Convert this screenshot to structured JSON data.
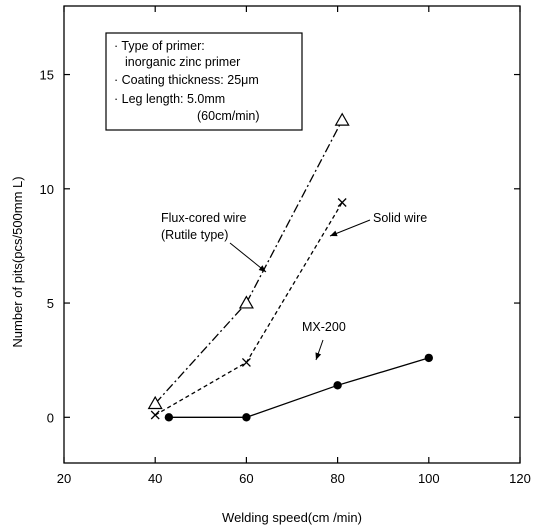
{
  "chart_data": {
    "type": "line",
    "xlabel": "Welding speed(cm /min)",
    "ylabel": "Number of pits(pcs/500mm L)",
    "xlim": [
      20,
      120
    ],
    "ylim": [
      -2,
      18
    ],
    "xticks": [
      20,
      40,
      60,
      80,
      100,
      120
    ],
    "yticks": [
      0,
      5,
      10,
      15
    ],
    "grid": false,
    "series": [
      {
        "name": "Flux-cored wire (Rutile type)",
        "marker": "triangle-open",
        "linestyle": "dash-dot",
        "x": [
          40,
          60,
          81
        ],
        "y": [
          0.6,
          5.0,
          13.0
        ]
      },
      {
        "name": "Solid wire",
        "marker": "x",
        "linestyle": "dashed",
        "x": [
          40,
          60,
          81
        ],
        "y": [
          0.1,
          2.4,
          9.4
        ]
      },
      {
        "name": "MX-200",
        "marker": "filled-circle",
        "linestyle": "solid",
        "x": [
          43,
          60,
          80,
          100
        ],
        "y": [
          0.0,
          0.0,
          1.4,
          2.6
        ]
      }
    ],
    "annotations": {
      "flux_line1": "Flux-cored wire",
      "flux_line2": "(Rutile type)",
      "solid": "Solid wire",
      "mx": "MX-200"
    },
    "legend_box": {
      "placement": "top-left",
      "lines": [
        "· Type of primer:",
        "inorganic zinc primer",
        "· Coating thickness: 25μm",
        "· Leg length: 5.0mm",
        "(60cm/min)"
      ]
    }
  }
}
